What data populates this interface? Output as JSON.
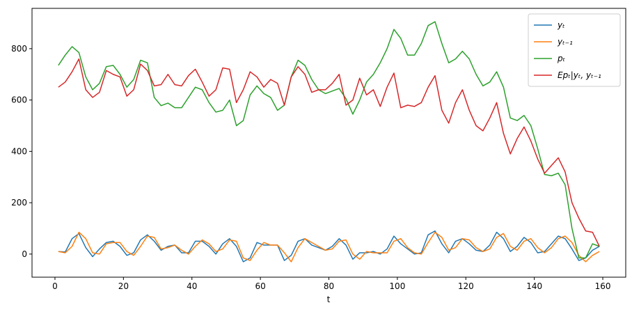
{
  "chart_data": {
    "type": "line",
    "xlabel": "t",
    "x": [
      1,
      3,
      5,
      7,
      9,
      11,
      13,
      15,
      17,
      19,
      21,
      23,
      25,
      27,
      29,
      31,
      33,
      35,
      37,
      39,
      41,
      43,
      45,
      47,
      49,
      51,
      53,
      55,
      57,
      59,
      61,
      63,
      65,
      67,
      69,
      71,
      73,
      75,
      77,
      79,
      81,
      83,
      85,
      87,
      89,
      91,
      93,
      95,
      97,
      99,
      101,
      103,
      105,
      107,
      109,
      111,
      113,
      115,
      117,
      119,
      121,
      123,
      125,
      127,
      129,
      131,
      133,
      135,
      137,
      139,
      141,
      143,
      145,
      147,
      149,
      151,
      153,
      155,
      157,
      159
    ],
    "series": [
      {
        "name": "yₜ",
        "color": "#1f77b4",
        "values": [
          10,
          8,
          60,
          80,
          25,
          -10,
          20,
          45,
          50,
          30,
          -5,
          5,
          55,
          75,
          50,
          15,
          30,
          35,
          5,
          5,
          50,
          50,
          30,
          0,
          40,
          60,
          30,
          -30,
          -15,
          45,
          35,
          35,
          35,
          -25,
          -5,
          50,
          60,
          35,
          25,
          15,
          30,
          60,
          35,
          -20,
          5,
          5,
          10,
          0,
          20,
          70,
          40,
          20,
          0,
          5,
          75,
          90,
          40,
          5,
          50,
          60,
          40,
          15,
          10,
          35,
          85,
          60,
          10,
          30,
          65,
          45,
          5,
          10,
          40,
          70,
          60,
          20,
          -25,
          -15,
          15,
          30
        ]
      },
      {
        "name": "yₜ₋₁",
        "color": "#ff7f0e",
        "values": [
          10,
          5,
          30,
          85,
          60,
          5,
          0,
          40,
          45,
          45,
          10,
          -5,
          30,
          70,
          65,
          20,
          25,
          35,
          15,
          0,
          30,
          55,
          40,
          10,
          20,
          55,
          50,
          -15,
          -25,
          15,
          45,
          35,
          35,
          5,
          -30,
          25,
          60,
          45,
          30,
          15,
          20,
          50,
          55,
          0,
          -20,
          10,
          5,
          5,
          5,
          50,
          60,
          25,
          5,
          0,
          45,
          85,
          65,
          15,
          25,
          60,
          55,
          25,
          10,
          20,
          65,
          80,
          30,
          15,
          50,
          60,
          25,
          5,
          25,
          60,
          70,
          45,
          -5,
          -30,
          -5,
          10
        ]
      },
      {
        "name": "pₜ",
        "color": "#2ca02c",
        "values": [
          735,
          775,
          808,
          785,
          690,
          640,
          665,
          730,
          735,
          700,
          650,
          680,
          755,
          745,
          610,
          578,
          588,
          570,
          570,
          610,
          650,
          640,
          590,
          553,
          560,
          600,
          500,
          520,
          620,
          655,
          625,
          610,
          560,
          580,
          690,
          755,
          735,
          680,
          640,
          625,
          635,
          645,
          605,
          545,
          600,
          670,
          700,
          745,
          800,
          875,
          840,
          775,
          775,
          820,
          890,
          905,
          820,
          745,
          760,
          790,
          760,
          700,
          655,
          670,
          710,
          650,
          530,
          520,
          540,
          500,
          410,
          310,
          305,
          315,
          270,
          100,
          -15,
          -15,
          40,
          30
        ]
      },
      {
        "name": "Epₜ|yₜ, yₜ₋₁",
        "color": "#d62728",
        "values": [
          650,
          670,
          710,
          760,
          640,
          610,
          630,
          715,
          700,
          690,
          615,
          640,
          740,
          715,
          655,
          660,
          700,
          660,
          655,
          695,
          720,
          670,
          615,
          640,
          725,
          720,
          590,
          640,
          710,
          690,
          650,
          680,
          665,
          580,
          690,
          730,
          700,
          630,
          640,
          640,
          665,
          700,
          580,
          600,
          685,
          620,
          640,
          575,
          650,
          705,
          570,
          580,
          575,
          590,
          650,
          695,
          560,
          510,
          590,
          640,
          560,
          500,
          480,
          530,
          590,
          470,
          390,
          450,
          495,
          440,
          370,
          315,
          345,
          375,
          320,
          200,
          140,
          90,
          85,
          30
        ]
      }
    ],
    "xlim": [
      -6.7,
      166.7
    ],
    "ylim": [
      -90,
      957
    ],
    "xticks": [
      0,
      20,
      40,
      60,
      80,
      100,
      120,
      140,
      160
    ],
    "yticks": [
      0,
      200,
      400,
      600,
      800
    ],
    "legend": "upper right"
  }
}
